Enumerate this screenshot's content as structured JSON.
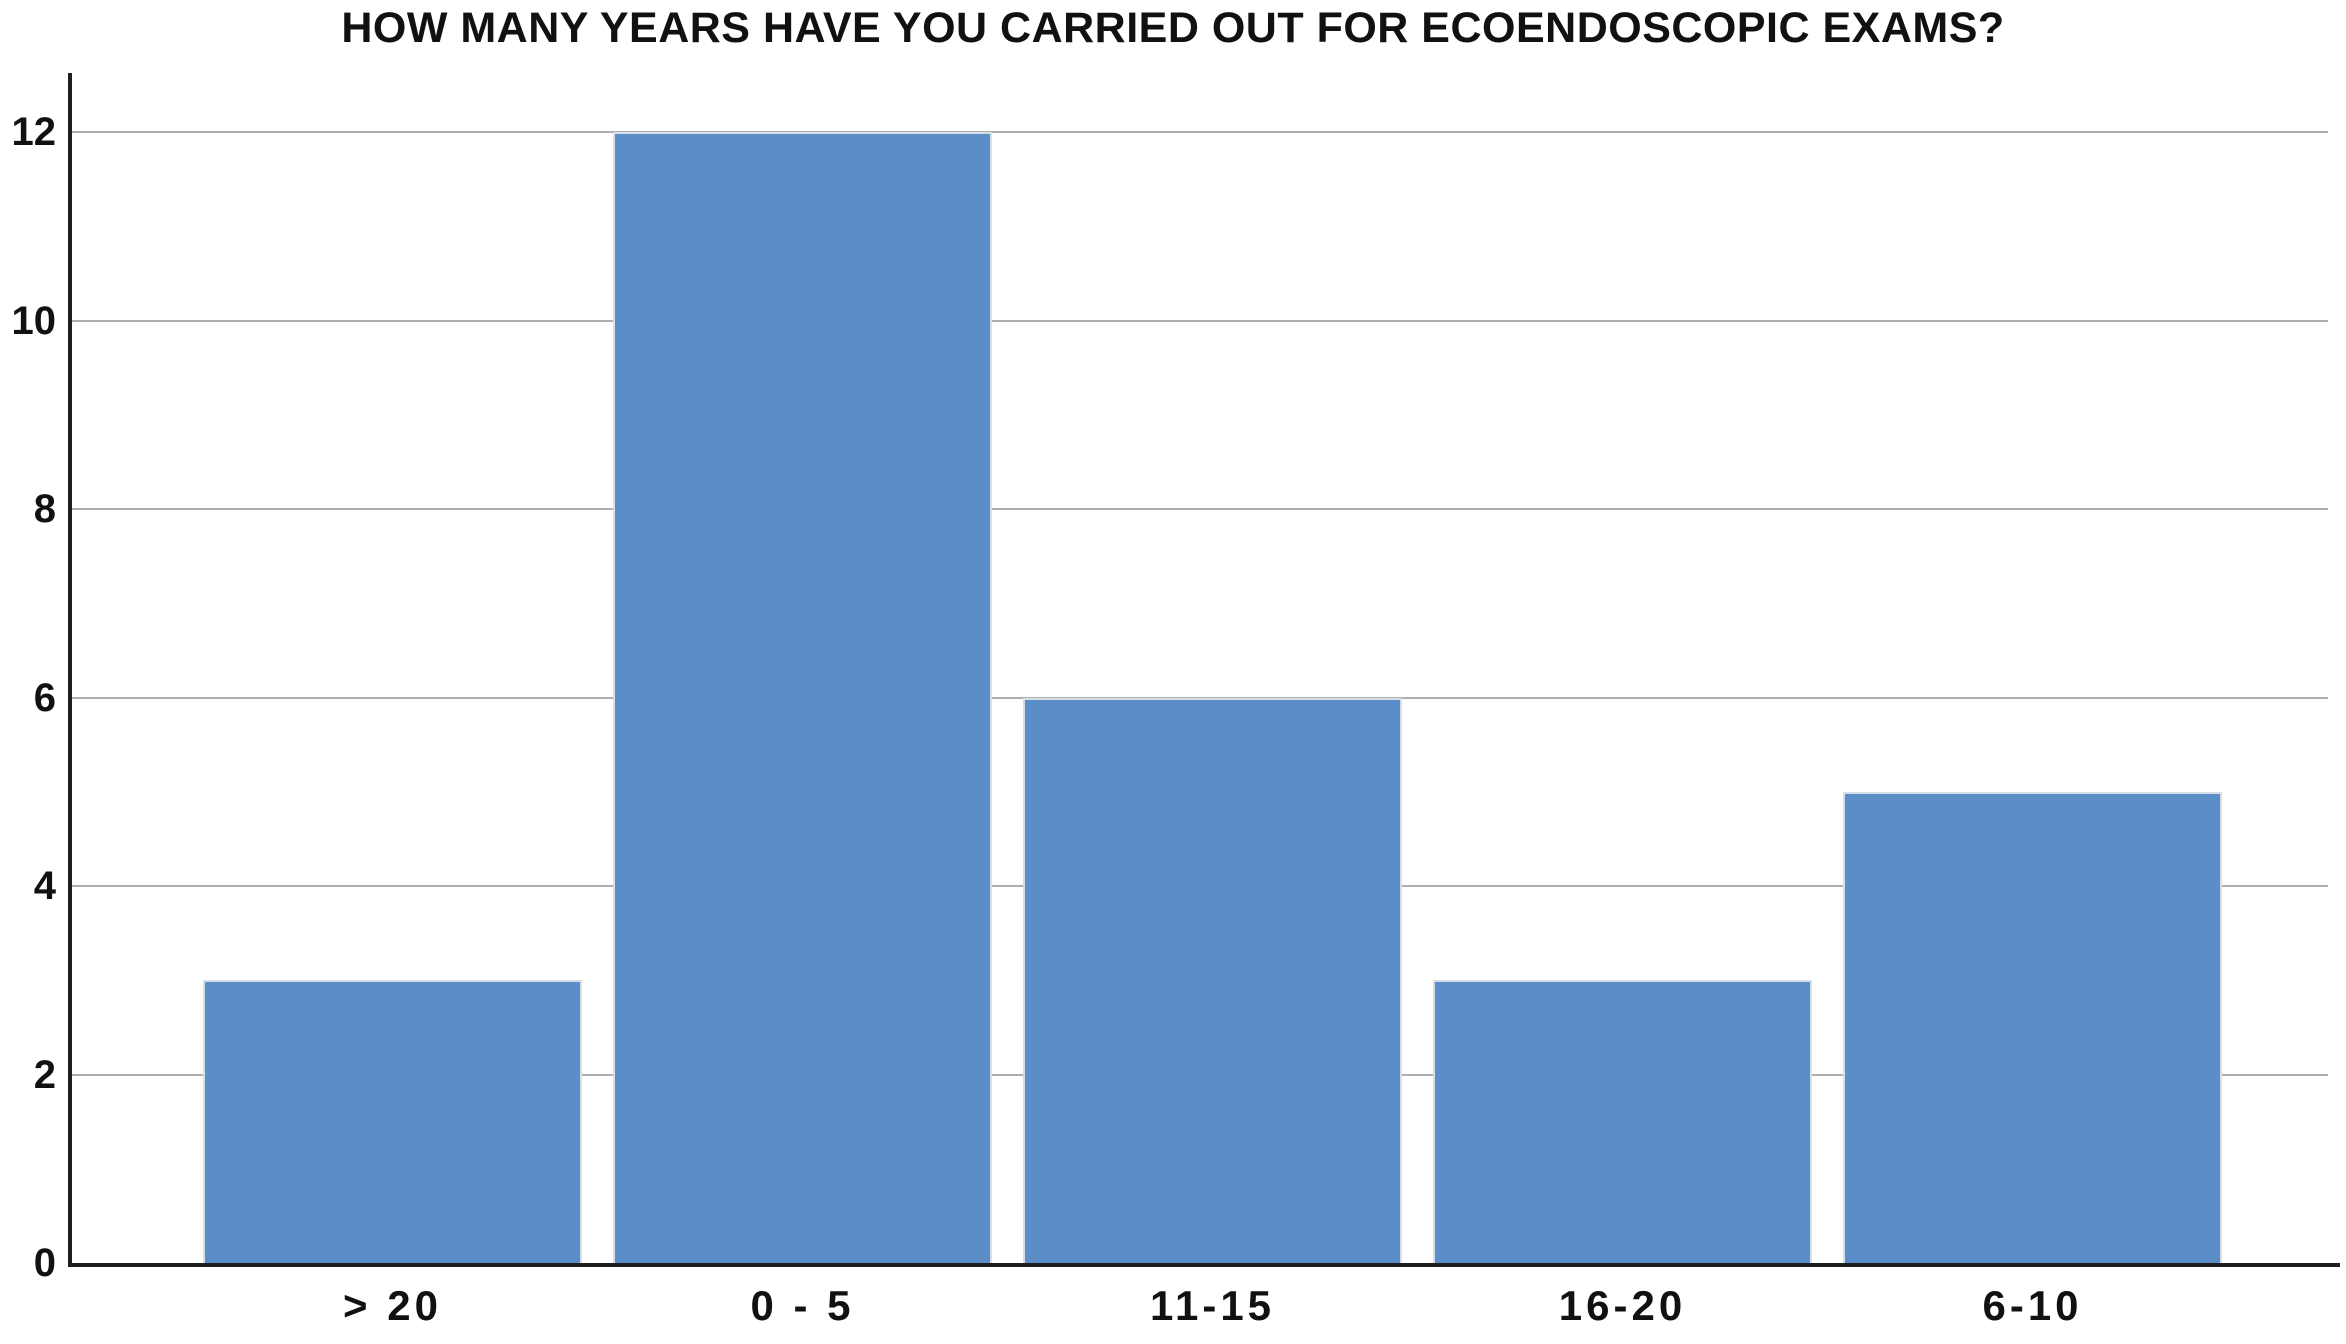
{
  "chart_data": {
    "type": "bar",
    "title": "HOW MANY YEARS HAVE YOU CARRIED OUT FOR ECOENDOSCOPIC EXAMS?",
    "categories": [
      "> 20",
      "0 - 5",
      "11-15",
      "16-20",
      "6-10"
    ],
    "values": [
      3,
      12,
      6,
      3,
      5
    ],
    "xlabel": "",
    "ylabel": "",
    "ylim": [
      0,
      12.6
    ],
    "yticks": [
      0,
      2,
      4,
      6,
      8,
      10,
      12
    ],
    "grid": true,
    "legend": false,
    "colors": {
      "bar_fill": "#5b8dc8",
      "bar_border": "#d6dee8",
      "gridline": "#aeaeae",
      "axis": "#1f1f1f",
      "text": "#111111",
      "background": "#ffffff"
    }
  }
}
